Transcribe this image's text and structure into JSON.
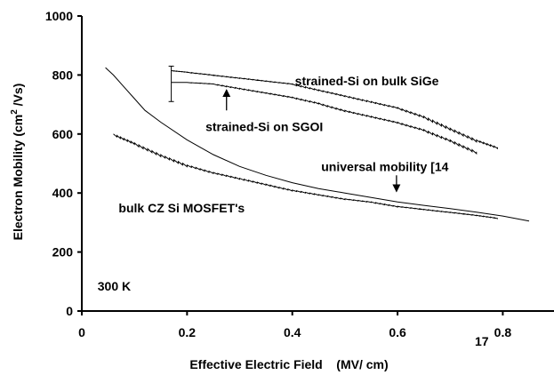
{
  "chart_data": {
    "type": "line",
    "title": "",
    "xlabel": "Effective Electric Field    (MV/ cm)",
    "ylabel": "Electron Mobility   (cm",
    "ylabel_sup": "2",
    "ylabel_tail": " /Vs)",
    "xlim": [
      0,
      0.85
    ],
    "ylim": [
      0,
      1000
    ],
    "x_ticks": [
      0,
      0.2,
      0.4,
      0.6,
      0.8
    ],
    "x_tick_labels": [
      "0",
      "0.2",
      "0.4",
      "0.6",
      "0.8"
    ],
    "y_ticks": [
      0,
      200,
      400,
      600,
      800,
      1000
    ],
    "y_tick_labels": [
      "0",
      "200",
      "400",
      "600",
      "800",
      "1000"
    ],
    "grid": false,
    "series": [
      {
        "name": "strained-Si on bulk SiGe",
        "style": "stepped",
        "x": [
          0.17,
          0.2,
          0.25,
          0.3,
          0.35,
          0.4,
          0.45,
          0.5,
          0.55,
          0.6,
          0.65,
          0.7,
          0.75,
          0.79
        ],
        "y": [
          815,
          810,
          800,
          790,
          780,
          770,
          750,
          730,
          710,
          690,
          660,
          620,
          580,
          555
        ]
      },
      {
        "name": "strained-Si on SGOI",
        "style": "stepped",
        "x": [
          0.17,
          0.2,
          0.25,
          0.3,
          0.35,
          0.4,
          0.45,
          0.5,
          0.55,
          0.6,
          0.65,
          0.7,
          0.75
        ],
        "y": [
          775,
          775,
          770,
          755,
          740,
          725,
          705,
          680,
          660,
          640,
          615,
          580,
          540
        ]
      },
      {
        "name": "universal mobility [14]",
        "style": "smooth",
        "x": [
          0.045,
          0.06,
          0.08,
          0.1,
          0.12,
          0.15,
          0.2,
          0.25,
          0.3,
          0.35,
          0.4,
          0.45,
          0.5,
          0.55,
          0.6,
          0.65,
          0.7,
          0.75,
          0.8,
          0.85
        ],
        "y": [
          825,
          800,
          760,
          720,
          680,
          640,
          580,
          530,
          490,
          460,
          435,
          415,
          400,
          385,
          370,
          358,
          347,
          335,
          322,
          305
        ]
      },
      {
        "name": "bulk CZ Si MOSFET's",
        "style": "stepped",
        "x": [
          0.06,
          0.1,
          0.15,
          0.2,
          0.25,
          0.3,
          0.35,
          0.4,
          0.45,
          0.5,
          0.55,
          0.6,
          0.65,
          0.7,
          0.75,
          0.79
        ],
        "y": [
          600,
          570,
          530,
          495,
          470,
          450,
          430,
          410,
          395,
          380,
          370,
          355,
          345,
          335,
          325,
          315
        ]
      }
    ],
    "error_bar": {
      "x": 0.17,
      "y_low": 710,
      "y_high": 830
    },
    "annotations": [
      {
        "text": "strained-Si on bulk SiGe",
        "x": 0.405,
        "y": 765,
        "arrow": false
      },
      {
        "text": "strained-Si on SGOI",
        "x": 0.235,
        "y": 610,
        "arrow": true,
        "arrow_from": [
          0.275,
          680
        ],
        "arrow_to": [
          0.275,
          750
        ]
      },
      {
        "text": "universal mobility [14",
        "x": 0.455,
        "y": 475,
        "arrow": true,
        "arrow_from": [
          0.598,
          460
        ],
        "arrow_to": [
          0.598,
          405
        ]
      },
      {
        "text": "bulk CZ Si MOSFET's",
        "x": 0.07,
        "y": 335,
        "arrow": false
      },
      {
        "text": "300 K",
        "x": 0.03,
        "y": 70,
        "arrow": false
      }
    ],
    "overlay_label": "17"
  }
}
